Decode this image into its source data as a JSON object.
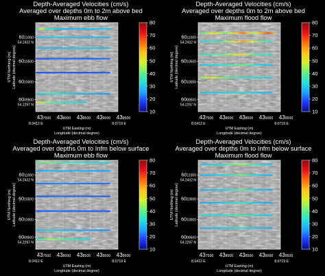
{
  "figure": {
    "colorbar_stops": [
      "#0a0a8c",
      "#1f3cff",
      "#1fa7ff",
      "#24e3d6",
      "#6df07a",
      "#d8f02a",
      "#ffc21a",
      "#ff6a10",
      "#e8101a",
      "#8c0a0a"
    ],
    "line_color_ramp": [
      "#1f3cff",
      "#1fa7ff",
      "#24e3d6",
      "#6df07a",
      "#d8f02a",
      "#ffc21a",
      "#ff6a10",
      "#e8101a"
    ]
  },
  "chart_data": [
    {
      "type": "line",
      "title": [
        "Depth-Averaged Velocities (cm/s)",
        "Averaged over depths 0m to 2m above bed",
        "Maximum ebb flow"
      ],
      "xlabel": [
        "UTM Easting (m)",
        "Longitude (decimal degree)"
      ],
      "ylabel": [
        "UTM Northing (m)",
        "Latitude (decimal degree)"
      ],
      "x_ticks": [
        {
          "pre": "43",
          "post": "7500"
        },
        {
          "pre": "43",
          "post": "8000"
        },
        {
          "pre": "43",
          "post": "8500"
        },
        {
          "pre": "43",
          "post": "9000"
        },
        {
          "pre": "43",
          "post": "9500"
        }
      ],
      "x_corner_labels": [
        "8.0412 E",
        "8.0719 E"
      ],
      "y_ticks": [
        {
          "pre": "60",
          "post": "11000"
        },
        {
          "pre": "60",
          "post": "10500"
        },
        {
          "pre": "60",
          "post": "10000"
        },
        {
          "pre": "60",
          "post": "09500"
        }
      ],
      "y_corner_labels": [
        "54.2432 N",
        "54.2297 N"
      ],
      "xlim": [
        437400,
        439500
      ],
      "ylim": [
        6009200,
        6011300
      ],
      "colorbar": {
        "label": "",
        "ticks": [
          10,
          20,
          30,
          40,
          50,
          60,
          70,
          80
        ],
        "range": [
          10,
          80
        ]
      },
      "transects": [
        {
          "northing": 6011150,
          "speed_profile": [
            [
              437400,
              20
            ],
            [
              437520,
              55
            ],
            [
              437650,
              35
            ],
            [
              438100,
              22
            ],
            [
              438800,
              24
            ],
            [
              439300,
              26
            ]
          ]
        },
        {
          "northing": 6010950,
          "speed_profile": [
            [
              437400,
              22
            ],
            [
              437900,
              25
            ],
            [
              438600,
              23
            ],
            [
              439300,
              21
            ]
          ]
        },
        {
          "northing": 6010700,
          "speed_profile": [
            [
              437400,
              24
            ],
            [
              437900,
              22
            ],
            [
              438500,
              26
            ],
            [
              439300,
              23
            ]
          ]
        },
        {
          "northing": 6010450,
          "speed_profile": [
            [
              437400,
              12
            ],
            [
              437900,
              14
            ],
            [
              438600,
              13
            ],
            [
              439300,
              15
            ]
          ]
        },
        {
          "northing": 6010120,
          "speed_profile": [
            [
              437400,
              12
            ],
            [
              437900,
              13
            ],
            [
              438600,
              12
            ],
            [
              439300,
              14
            ]
          ]
        },
        {
          "northing": 6009620,
          "speed_profile": [
            [
              437400,
              25
            ],
            [
              437800,
              32
            ],
            [
              438100,
              28
            ],
            [
              438600,
              22
            ],
            [
              439300,
              18
            ]
          ]
        },
        {
          "northing": 6009420,
          "speed_profile": [
            [
              437400,
              55
            ],
            [
              437600,
              45
            ],
            [
              437900,
              35
            ],
            [
              438300,
              30
            ],
            [
              438700,
              28
            ]
          ]
        }
      ]
    },
    {
      "type": "line",
      "title": [
        "Depth-Averaged Velocities (cm/s)",
        "Averaged over depths 0m to 2m above bed",
        "Maximum flood flow"
      ],
      "xlabel": [
        "UTM Easting (m)",
        "Longitude (decimal degree)"
      ],
      "ylabel": [
        "UTM Northing (m)",
        "Latitude (decimal degree)"
      ],
      "x_ticks": [
        {
          "pre": "43",
          "post": "7500"
        },
        {
          "pre": "43",
          "post": "8000"
        },
        {
          "pre": "43",
          "post": "8500"
        },
        {
          "pre": "43",
          "post": "9000"
        },
        {
          "pre": "43",
          "post": "9500"
        }
      ],
      "x_corner_labels": [
        "8.0412 E",
        "8.0719 E"
      ],
      "y_ticks": [
        {
          "pre": "60",
          "post": "11000"
        },
        {
          "pre": "60",
          "post": "10500"
        },
        {
          "pre": "60",
          "post": "10000"
        },
        {
          "pre": "60",
          "post": "09500"
        }
      ],
      "y_corner_labels": [
        "54.2432 N",
        "54.2297 N"
      ],
      "xlim": [
        437400,
        439500
      ],
      "ylim": [
        6009200,
        6011300
      ],
      "colorbar": {
        "label": "",
        "ticks": [
          10,
          20,
          30,
          40,
          50,
          60,
          70,
          80
        ],
        "range": [
          10,
          80
        ]
      },
      "transects": [
        {
          "northing": 6011050,
          "speed_profile": [
            [
              437450,
              35
            ],
            [
              437800,
              55
            ],
            [
              438100,
              40
            ],
            [
              438550,
              70
            ],
            [
              438800,
              45
            ],
            [
              439200,
              75
            ],
            [
              439350,
              60
            ]
          ]
        },
        {
          "northing": 6010850,
          "speed_profile": [
            [
              437450,
              28
            ],
            [
              438000,
              35
            ],
            [
              438550,
              65
            ],
            [
              439000,
              38
            ],
            [
              439300,
              30
            ]
          ]
        },
        {
          "northing": 6010550,
          "speed_profile": [
            [
              437450,
              30
            ],
            [
              438000,
              38
            ],
            [
              438500,
              55
            ],
            [
              438900,
              33
            ],
            [
              439300,
              30
            ]
          ]
        },
        {
          "northing": 6010300,
          "speed_profile": [
            [
              437450,
              25
            ],
            [
              438000,
              30
            ],
            [
              438500,
              40
            ],
            [
              439000,
              26
            ],
            [
              439300,
              24
            ]
          ]
        },
        {
          "northing": 6010000,
          "speed_profile": [
            [
              437450,
              40
            ],
            [
              437700,
              55
            ],
            [
              437900,
              45
            ],
            [
              438300,
              35
            ],
            [
              438700,
              30
            ],
            [
              439300,
              26
            ]
          ]
        },
        {
          "northing": 6009650,
          "speed_profile": [
            [
              437450,
              24
            ],
            [
              438000,
              27
            ],
            [
              438500,
              30
            ],
            [
              439300,
              22
            ]
          ]
        }
      ]
    },
    {
      "type": "line",
      "title": [
        "Depth-Averaged Velocities (cm/s)",
        "Averaged over depths 0m to Infm below surface",
        "Maximum ebb flow"
      ],
      "xlabel": [
        "UTM Easting (m)",
        "Longitude (decimal degree)"
      ],
      "ylabel": [
        "UTM Northing (m)",
        "Latitude (decimal degree)"
      ],
      "x_ticks": [
        {
          "pre": "43",
          "post": "7500"
        },
        {
          "pre": "43",
          "post": "8000"
        },
        {
          "pre": "43",
          "post": "8500"
        },
        {
          "pre": "43",
          "post": "9000"
        },
        {
          "pre": "43",
          "post": "9500"
        }
      ],
      "x_corner_labels": [
        "8.0412 E",
        "8.0719 E"
      ],
      "y_ticks": [
        {
          "pre": "60",
          "post": "11000"
        },
        {
          "pre": "60",
          "post": "10500"
        },
        {
          "pre": "60",
          "post": "10000"
        },
        {
          "pre": "60",
          "post": "09500"
        }
      ],
      "y_corner_labels": [
        "54.2432 N",
        "54.2297 N"
      ],
      "xlim": [
        437400,
        439500
      ],
      "ylim": [
        6009200,
        6011300
      ],
      "colorbar": {
        "label": "",
        "ticks": [
          10,
          20,
          30,
          40,
          50,
          60,
          70,
          80
        ],
        "range": [
          10,
          80
        ]
      },
      "transects": [
        {
          "northing": 6011250,
          "speed_profile": [
            [
              437400,
              35
            ],
            [
              437700,
              42
            ],
            [
              438100,
              33
            ],
            [
              438600,
              30
            ],
            [
              439300,
              28
            ]
          ]
        },
        {
          "northing": 6011050,
          "speed_profile": [
            [
              437400,
              20
            ],
            [
              438000,
              23
            ],
            [
              438700,
              21
            ],
            [
              439300,
              20
            ]
          ]
        },
        {
          "northing": 6010750,
          "speed_profile": [
            [
              437400,
              15
            ],
            [
              438000,
              18
            ],
            [
              438600,
              16
            ],
            [
              439300,
              15
            ]
          ]
        },
        {
          "northing": 6010450,
          "speed_profile": [
            [
              437400,
              13
            ],
            [
              438000,
              15
            ],
            [
              438600,
              14
            ],
            [
              439300,
              13
            ]
          ]
        },
        {
          "northing": 6010100,
          "speed_profile": [
            [
              437400,
              12
            ],
            [
              438000,
              14
            ],
            [
              438600,
              13
            ],
            [
              439300,
              12
            ]
          ]
        },
        {
          "northing": 6009650,
          "speed_profile": [
            [
              437400,
              22
            ],
            [
              437800,
              28
            ],
            [
              438100,
              24
            ],
            [
              438700,
              20
            ],
            [
              439300,
              18
            ]
          ]
        },
        {
          "northing": 6009430,
          "speed_profile": [
            [
              437400,
              30
            ],
            [
              437800,
              45
            ],
            [
              438000,
              38
            ],
            [
              438400,
              32
            ],
            [
              438800,
              28
            ]
          ]
        }
      ]
    },
    {
      "type": "line",
      "title": [
        "Depth-Averaged Velocities (cm/s)",
        "Averaged over depths 0m to Infm below surface",
        "Maximum flood flow"
      ],
      "xlabel": [
        "UTM Easting (m)",
        "Longitude (decimal degree)"
      ],
      "ylabel": [
        "UTM Northing (m)",
        "Latitude (decimal degree)"
      ],
      "x_ticks": [
        {
          "pre": "43",
          "post": "7500"
        },
        {
          "pre": "43",
          "post": "8000"
        },
        {
          "pre": "43",
          "post": "8500"
        },
        {
          "pre": "43",
          "post": "9000"
        },
        {
          "pre": "43",
          "post": "9500"
        }
      ],
      "x_corner_labels": [
        "8.0412 E",
        "8.0719 E"
      ],
      "y_ticks": [
        {
          "pre": "60",
          "post": "11000"
        },
        {
          "pre": "60",
          "post": "10500"
        },
        {
          "pre": "60",
          "post": "10000"
        },
        {
          "pre": "60",
          "post": "09500"
        }
      ],
      "y_corner_labels": [
        "54.2432 N",
        "54.2297 N"
      ],
      "xlim": [
        437400,
        439500
      ],
      "ylim": [
        6009200,
        6011300
      ],
      "colorbar": {
        "label": "",
        "ticks": [
          10,
          20,
          30,
          40,
          50,
          60,
          70,
          80
        ],
        "range": [
          10,
          80
        ]
      },
      "transects": [
        {
          "northing": 6011200,
          "speed_profile": [
            [
              437450,
              25
            ],
            [
              438000,
              30
            ],
            [
              438500,
              45
            ],
            [
              439000,
              28
            ],
            [
              439300,
              25
            ]
          ]
        },
        {
          "northing": 6010950,
          "speed_profile": [
            [
              437450,
              22
            ],
            [
              438000,
              26
            ],
            [
              438500,
              40
            ],
            [
              439000,
              24
            ],
            [
              439300,
              22
            ]
          ]
        },
        {
          "northing": 6010600,
          "speed_profile": [
            [
              437450,
              22
            ],
            [
              438000,
              25
            ],
            [
              438500,
              38
            ],
            [
              439000,
              23
            ],
            [
              439300,
              22
            ]
          ]
        },
        {
          "northing": 6010300,
          "speed_profile": [
            [
              437450,
              20
            ],
            [
              438000,
              24
            ],
            [
              438500,
              33
            ],
            [
              439000,
              22
            ],
            [
              439300,
              20
            ]
          ]
        },
        {
          "northing": 6010000,
          "speed_profile": [
            [
              437450,
              28
            ],
            [
              438000,
              30
            ],
            [
              438500,
              35
            ],
            [
              439000,
              26
            ],
            [
              439300,
              24
            ]
          ]
        },
        {
          "northing": 6009700,
          "speed_profile": [
            [
              437450,
              22
            ],
            [
              438000,
              25
            ],
            [
              438500,
              30
            ],
            [
              439000,
              22
            ],
            [
              439300,
              20
            ]
          ]
        }
      ]
    }
  ]
}
